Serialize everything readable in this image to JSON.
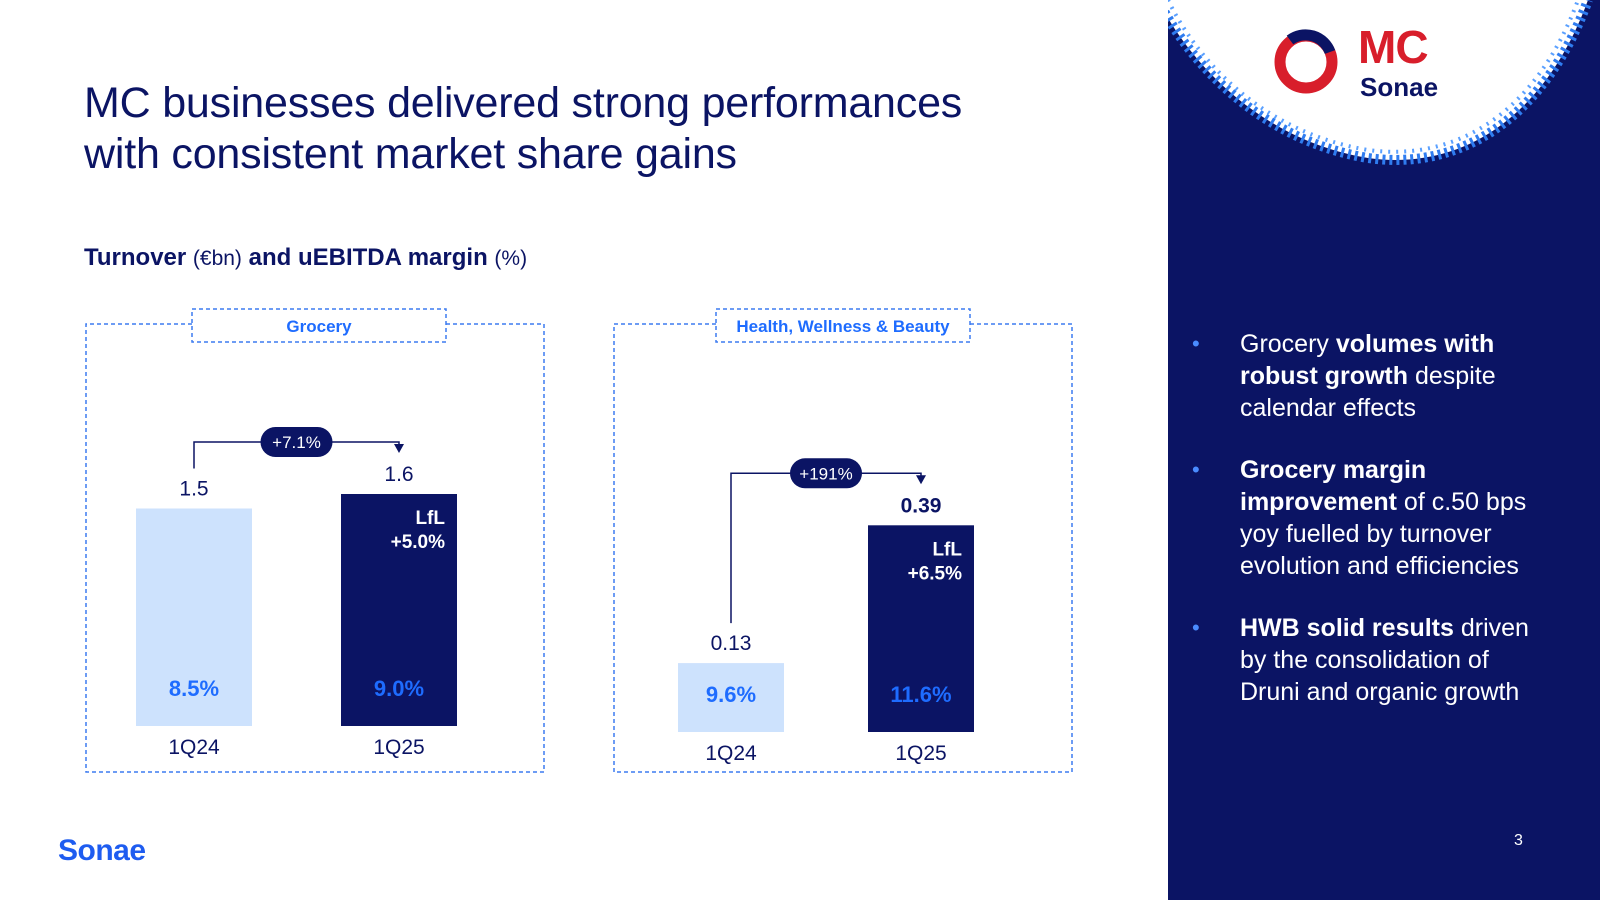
{
  "title_line1": "MC businesses delivered strong performances",
  "title_line2": "with consistent market share gains",
  "subtitle": {
    "part1": "Turnover",
    "part2": "(€bn)",
    "part3": "and uEBITDA margin",
    "part4": "(%)"
  },
  "colors": {
    "navy": "#0b1464",
    "light_bar": "#cde2fd",
    "accent_blue": "#1e6cff",
    "dash": "#3d7cf0"
  },
  "chart_data": [
    {
      "type": "bar",
      "title": "Grocery",
      "categories": [
        "1Q24",
        "1Q25"
      ],
      "turnover": [
        1.5,
        1.6
      ],
      "turnover_labels": [
        "1.5",
        "1.6"
      ],
      "margin_labels": [
        "8.5%",
        "9.0%"
      ],
      "growth_label": "+7.1%",
      "lfl_line1": "LfL",
      "lfl_line2": "+5.0%"
    },
    {
      "type": "bar",
      "title": "Health, Wellness & Beauty",
      "categories": [
        "1Q24",
        "1Q25"
      ],
      "turnover": [
        0.13,
        0.39
      ],
      "turnover_labels": [
        "0.13",
        "0.39"
      ],
      "margin_labels": [
        "9.6%",
        "11.6%"
      ],
      "growth_label": "+191%",
      "lfl_line1": "LfL",
      "lfl_line2": "+6.5%"
    }
  ],
  "logo": {
    "mc": "MC",
    "sonae": "Sonae",
    "footer": "Sonae"
  },
  "bullets": [
    {
      "pre": "Grocery ",
      "bold": "volumes with robust growth",
      "post": " despite calendar effects"
    },
    {
      "pre": "",
      "bold": "Grocery margin improvement",
      "post": " of c.50 bps yoy fuelled by turnover evolution and efficiencies"
    },
    {
      "pre": "",
      "bold": "HWB solid results",
      "post": " driven by the consolidation of Druni and organic growth"
    }
  ],
  "page_number": "3"
}
